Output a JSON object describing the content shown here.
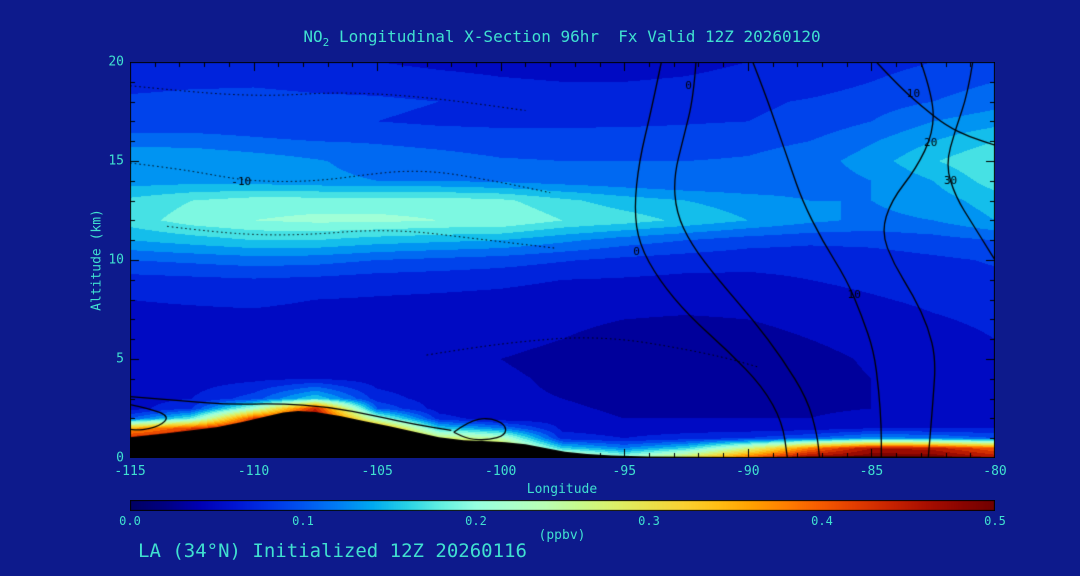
{
  "page": {
    "background": "#0d1a8c",
    "text_color": "#40e0d0"
  },
  "chart_data": {
    "type": "heatmap",
    "title_prefix": "NO",
    "title_sub": "2",
    "title_rest": " Longitudinal X-Section 96hr  Fx Valid 12Z 20260120",
    "footer": "LA (34°N) Initialized 12Z 20260116",
    "xlabel": "Longitude",
    "ylabel": "Altitude (km)",
    "xlim": [
      -115,
      -80
    ],
    "ylim": [
      0,
      20
    ],
    "x_ticks": [
      -115,
      -110,
      -105,
      -100,
      -95,
      -90,
      -85,
      -80
    ],
    "y_ticks": [
      0,
      5,
      10,
      15,
      20
    ],
    "grid_on": false,
    "colorbar": {
      "label": "(ppbv)",
      "tick_labels": [
        "0.0",
        "0.1",
        "0.2",
        "0.3",
        "0.4",
        "0.5"
      ],
      "min": 0.0,
      "max": 0.5
    },
    "colormap": [
      [
        0.0,
        "#000064"
      ],
      [
        0.02,
        "#000082"
      ],
      [
        0.04,
        "#0000b4"
      ],
      [
        0.06,
        "#0014d2"
      ],
      [
        0.08,
        "#0032e6"
      ],
      [
        0.1,
        "#0055f0"
      ],
      [
        0.12,
        "#007df5"
      ],
      [
        0.14,
        "#00aaf0"
      ],
      [
        0.16,
        "#28d2e6"
      ],
      [
        0.18,
        "#64f0e1"
      ],
      [
        0.2,
        "#96ffe1"
      ],
      [
        0.22,
        "#aaffcd"
      ],
      [
        0.24,
        "#b9ffb4"
      ],
      [
        0.26,
        "#c8fa8c"
      ],
      [
        0.28,
        "#dcf169"
      ],
      [
        0.3,
        "#ebe14b"
      ],
      [
        0.32,
        "#fad232"
      ],
      [
        0.34,
        "#ffbe14"
      ],
      [
        0.36,
        "#ffa000"
      ],
      [
        0.38,
        "#ff7d00"
      ],
      [
        0.4,
        "#f55a00"
      ],
      [
        0.42,
        "#e13c00"
      ],
      [
        0.44,
        "#c82300"
      ],
      [
        0.46,
        "#aa0f00"
      ],
      [
        0.48,
        "#8c0500"
      ],
      [
        0.5,
        "#700000"
      ]
    ],
    "band_step": 0.02,
    "grid": {
      "lons": [
        -115,
        -112.5,
        -110,
        -107.5,
        -105,
        -102.5,
        -100,
        -97.5,
        -95,
        -92.5,
        -90,
        -87.5,
        -85,
        -82.5,
        -80
      ],
      "alts": [
        0,
        0.5,
        1,
        1.5,
        2,
        2.5,
        3,
        4,
        5,
        6,
        7,
        8,
        9,
        10,
        11,
        12,
        13,
        14,
        15,
        16,
        17,
        18,
        19,
        20
      ],
      "values": [
        [
          0.5,
          0.5,
          0.5,
          0.5,
          0.5,
          0.46,
          0.4,
          0.3,
          0.22,
          0.3,
          0.4,
          0.48,
          0.5,
          0.5,
          0.46
        ],
        [
          0.5,
          0.5,
          0.5,
          0.5,
          0.47,
          0.38,
          0.32,
          0.16,
          0.12,
          0.16,
          0.26,
          0.38,
          0.46,
          0.45,
          0.4
        ],
        [
          0.44,
          0.47,
          0.5,
          0.5,
          0.44,
          0.28,
          0.24,
          0.07,
          0.06,
          0.07,
          0.08,
          0.1,
          0.13,
          0.12,
          0.1
        ],
        [
          0.35,
          0.42,
          0.48,
          0.5,
          0.38,
          0.16,
          0.12,
          0.055,
          0.05,
          0.05,
          0.05,
          0.05,
          0.06,
          0.06,
          0.06
        ],
        [
          0.1,
          0.18,
          0.42,
          0.48,
          0.22,
          0.07,
          0.045,
          0.05,
          0.04,
          0.04,
          0.04,
          0.04,
          0.05,
          0.05,
          0.05
        ],
        [
          0.05,
          0.08,
          0.22,
          0.44,
          0.1,
          0.05,
          0.04,
          0.045,
          0.035,
          0.03,
          0.03,
          0.035,
          0.04,
          0.045,
          0.05
        ],
        [
          0.05,
          0.06,
          0.09,
          0.16,
          0.07,
          0.05,
          0.042,
          0.04,
          0.03,
          0.022,
          0.028,
          0.033,
          0.04,
          0.045,
          0.05
        ],
        [
          0.045,
          0.05,
          0.055,
          0.06,
          0.05,
          0.045,
          0.042,
          0.038,
          0.028,
          0.02,
          0.028,
          0.034,
          0.04,
          0.046,
          0.05
        ],
        [
          0.045,
          0.048,
          0.05,
          0.05,
          0.046,
          0.044,
          0.04,
          0.036,
          0.028,
          0.024,
          0.03,
          0.035,
          0.042,
          0.05,
          0.055
        ],
        [
          0.05,
          0.05,
          0.05,
          0.05,
          0.048,
          0.046,
          0.044,
          0.04,
          0.034,
          0.03,
          0.034,
          0.04,
          0.046,
          0.052,
          0.06
        ],
        [
          0.055,
          0.055,
          0.055,
          0.053,
          0.05,
          0.05,
          0.048,
          0.044,
          0.04,
          0.038,
          0.04,
          0.045,
          0.05,
          0.058,
          0.064
        ],
        [
          0.06,
          0.062,
          0.064,
          0.06,
          0.058,
          0.056,
          0.054,
          0.05,
          0.048,
          0.047,
          0.048,
          0.052,
          0.058,
          0.064,
          0.07
        ],
        [
          0.072,
          0.075,
          0.078,
          0.075,
          0.07,
          0.068,
          0.065,
          0.06,
          0.058,
          0.055,
          0.056,
          0.06,
          0.065,
          0.07,
          0.076
        ],
        [
          0.1,
          0.105,
          0.11,
          0.108,
          0.1,
          0.095,
          0.09,
          0.082,
          0.075,
          0.07,
          0.066,
          0.066,
          0.07,
          0.076,
          0.082
        ],
        [
          0.14,
          0.15,
          0.16,
          0.16,
          0.15,
          0.145,
          0.14,
          0.125,
          0.11,
          0.1,
          0.09,
          0.085,
          0.086,
          0.092,
          0.1
        ],
        [
          0.17,
          0.19,
          0.2,
          0.205,
          0.205,
          0.2,
          0.2,
          0.18,
          0.17,
          0.155,
          0.14,
          0.125,
          0.115,
          0.12,
          0.14
        ],
        [
          0.165,
          0.18,
          0.19,
          0.19,
          0.19,
          0.19,
          0.185,
          0.165,
          0.15,
          0.14,
          0.13,
          0.12,
          0.12,
          0.13,
          0.15
        ],
        [
          0.13,
          0.132,
          0.13,
          0.125,
          0.12,
          0.12,
          0.115,
          0.11,
          0.105,
          0.1,
          0.1,
          0.108,
          0.12,
          0.14,
          0.17
        ],
        [
          0.14,
          0.14,
          0.132,
          0.122,
          0.112,
          0.108,
          0.102,
          0.1,
          0.1,
          0.1,
          0.102,
          0.11,
          0.13,
          0.158,
          0.18
        ],
        [
          0.112,
          0.11,
          0.104,
          0.1,
          0.098,
          0.094,
          0.09,
          0.09,
          0.09,
          0.09,
          0.094,
          0.1,
          0.118,
          0.14,
          0.16
        ],
        [
          0.082,
          0.086,
          0.086,
          0.082,
          0.08,
          0.076,
          0.075,
          0.075,
          0.076,
          0.078,
          0.08,
          0.086,
          0.1,
          0.12,
          0.132
        ],
        [
          0.086,
          0.09,
          0.09,
          0.086,
          0.084,
          0.08,
          0.076,
          0.072,
          0.07,
          0.072,
          0.076,
          0.082,
          0.09,
          0.1,
          0.112
        ],
        [
          0.07,
          0.074,
          0.076,
          0.072,
          0.07,
          0.066,
          0.062,
          0.06,
          0.06,
          0.062,
          0.066,
          0.07,
          0.08,
          0.09,
          0.1
        ],
        [
          0.06,
          0.062,
          0.062,
          0.06,
          0.06,
          0.056,
          0.054,
          0.052,
          0.052,
          0.055,
          0.06,
          0.064,
          0.072,
          0.08,
          0.09
        ]
      ]
    },
    "terrain": [
      [
        -115,
        1.05
      ],
      [
        -113.5,
        1.25
      ],
      [
        -112.5,
        1.4
      ],
      [
        -111.5,
        1.55
      ],
      [
        -110.5,
        1.8
      ],
      [
        -109.5,
        2.1
      ],
      [
        -108.8,
        2.3
      ],
      [
        -108.2,
        2.38
      ],
      [
        -107.5,
        2.32
      ],
      [
        -106.5,
        2.12
      ],
      [
        -105.5,
        1.86
      ],
      [
        -104.5,
        1.6
      ],
      [
        -103.5,
        1.32
      ],
      [
        -102.5,
        1.05
      ],
      [
        -101.5,
        0.9
      ],
      [
        -100.5,
        0.85
      ],
      [
        -99.8,
        0.8
      ],
      [
        -99,
        0.7
      ],
      [
        -98.2,
        0.5
      ],
      [
        -97.4,
        0.32
      ],
      [
        -96.5,
        0.2
      ],
      [
        -95.5,
        0.12
      ],
      [
        -94,
        0.08
      ],
      [
        -92,
        0.06
      ],
      [
        -90,
        0.05
      ],
      [
        -88,
        0.06
      ],
      [
        -86,
        0.07
      ],
      [
        -84,
        0.07
      ],
      [
        -82,
        0.06
      ],
      [
        -80,
        0.05
      ]
    ],
    "contour_labels": [
      -10,
      0,
      10,
      20,
      30
    ],
    "contours": [
      {
        "label": "0",
        "style": "solid",
        "points": [
          [
            -93.5,
            20
          ],
          [
            -93.9,
            17.6
          ],
          [
            -94.4,
            15.0
          ],
          [
            -94.6,
            12.6
          ],
          [
            -94.4,
            10.8
          ],
          [
            -93.6,
            9.0
          ],
          [
            -92.4,
            7.2
          ],
          [
            -90.8,
            5.4
          ],
          [
            -89.4,
            3.6
          ],
          [
            -88.6,
            1.8
          ],
          [
            -88.4,
            0
          ]
        ],
        "labels": [
          [
            -94.5,
            10.4
          ]
        ]
      },
      {
        "label": "0",
        "style": "solid",
        "points": [
          [
            -92.1,
            20
          ],
          [
            -92.2,
            18.2
          ],
          [
            -92.6,
            16.2
          ],
          [
            -93.0,
            14.2
          ],
          [
            -92.9,
            12.4
          ],
          [
            -92.3,
            10.8
          ],
          [
            -91.2,
            9.0
          ],
          [
            -89.8,
            7.0
          ],
          [
            -88.6,
            5.0
          ],
          [
            -87.6,
            3.0
          ],
          [
            -87.2,
            1.2
          ],
          [
            -87.1,
            0
          ]
        ],
        "labels": [
          [
            -92.4,
            18.8
          ]
        ]
      },
      {
        "label": "10",
        "style": "solid",
        "points": [
          [
            -89.8,
            20
          ],
          [
            -89.3,
            18.4
          ],
          [
            -88.8,
            16.6
          ],
          [
            -88.3,
            14.8
          ],
          [
            -87.8,
            13.0
          ],
          [
            -87.0,
            11.0
          ],
          [
            -86.0,
            9.0
          ],
          [
            -85.4,
            7.2
          ],
          [
            -84.9,
            5.4
          ],
          [
            -84.7,
            3.4
          ],
          [
            -84.6,
            1.6
          ],
          [
            -84.6,
            0
          ]
        ],
        "labels": [
          [
            -85.7,
            8.2
          ]
        ]
      },
      {
        "label": "10",
        "style": "solid",
        "points": [
          [
            -84.8,
            20
          ],
          [
            -83.9,
            18.8
          ],
          [
            -83.0,
            17.8
          ],
          [
            -82.0,
            16.8
          ],
          [
            -81.0,
            16.2
          ],
          [
            -80.0,
            15.8
          ]
        ],
        "labels": [
          [
            -83.3,
            18.4
          ]
        ]
      },
      {
        "label": "20",
        "style": "solid",
        "points": [
          [
            -83.0,
            20
          ],
          [
            -82.5,
            18.2
          ],
          [
            -82.5,
            16.4
          ],
          [
            -83.2,
            14.6
          ],
          [
            -84.2,
            13.0
          ],
          [
            -84.6,
            11.4
          ],
          [
            -84.1,
            9.8
          ],
          [
            -83.3,
            8.2
          ],
          [
            -82.7,
            6.6
          ],
          [
            -82.4,
            5.0
          ],
          [
            -82.5,
            3.0
          ],
          [
            -82.7,
            0
          ]
        ],
        "labels": [
          [
            -82.6,
            15.9
          ]
        ]
      },
      {
        "label": "30",
        "style": "solid",
        "points": [
          [
            -80.9,
            20
          ],
          [
            -81.1,
            18.4
          ],
          [
            -81.6,
            16.6
          ],
          [
            -82.0,
            14.8
          ],
          [
            -81.6,
            13.2
          ],
          [
            -80.9,
            11.8
          ],
          [
            -80.3,
            10.6
          ],
          [
            -80,
            10.0
          ]
        ],
        "labels": [
          [
            -81.8,
            14.0
          ]
        ]
      },
      {
        "label": "",
        "style": "solid",
        "points": [
          [
            -101.9,
            1.3
          ],
          [
            -101.3,
            1.85
          ],
          [
            -100.5,
            2.05
          ],
          [
            -99.8,
            1.7
          ],
          [
            -99.8,
            1.15
          ],
          [
            -100.5,
            0.9
          ],
          [
            -101.3,
            0.95
          ],
          [
            -101.9,
            1.3
          ]
        ],
        "labels": []
      },
      {
        "label": "",
        "style": "solid",
        "points": [
          [
            -115,
            2.7
          ],
          [
            -114.2,
            2.5
          ],
          [
            -113.4,
            2.1
          ],
          [
            -113.8,
            1.6
          ],
          [
            -114.6,
            1.4
          ],
          [
            -115,
            1.45
          ]
        ],
        "labels": []
      },
      {
        "label": "",
        "style": "solid",
        "points": [
          [
            -115,
            3.1
          ],
          [
            -113,
            2.9
          ],
          [
            -111,
            2.7
          ],
          [
            -109,
            2.75
          ],
          [
            -107,
            2.6
          ],
          [
            -105,
            2.1
          ],
          [
            -103.5,
            1.7
          ],
          [
            -102,
            1.4
          ]
        ],
        "labels": []
      },
      {
        "label": "-10",
        "style": "dotted",
        "points": [
          [
            -115,
            14.9
          ],
          [
            -113,
            14.6
          ],
          [
            -111,
            14.15
          ],
          [
            -110,
            14.0
          ],
          [
            -108.5,
            13.95
          ],
          [
            -107,
            14.05
          ],
          [
            -105.5,
            14.3
          ],
          [
            -104,
            14.5
          ],
          [
            -102.5,
            14.45
          ],
          [
            -101,
            14.15
          ],
          [
            -99.5,
            13.8
          ],
          [
            -98,
            13.4
          ]
        ],
        "labels": [
          [
            -110.5,
            13.95
          ]
        ]
      },
      {
        "label": "",
        "style": "dotted",
        "points": [
          [
            -115,
            18.8
          ],
          [
            -113,
            18.55
          ],
          [
            -111,
            18.35
          ],
          [
            -109,
            18.3
          ],
          [
            -107,
            18.45
          ],
          [
            -105,
            18.4
          ],
          [
            -103,
            18.2
          ],
          [
            -101,
            17.9
          ],
          [
            -99,
            17.55
          ]
        ],
        "labels": []
      },
      {
        "label": "",
        "style": "dotted",
        "points": [
          [
            -113.5,
            11.7
          ],
          [
            -111.5,
            11.4
          ],
          [
            -109.5,
            11.25
          ],
          [
            -107.5,
            11.3
          ],
          [
            -105.5,
            11.5
          ],
          [
            -103.5,
            11.45
          ],
          [
            -101.5,
            11.15
          ],
          [
            -99.5,
            10.85
          ],
          [
            -97.8,
            10.6
          ]
        ],
        "labels": []
      },
      {
        "label": "",
        "style": "dotted",
        "points": [
          [
            -103,
            5.2
          ],
          [
            -101,
            5.6
          ],
          [
            -99,
            5.9
          ],
          [
            -97,
            6.1
          ],
          [
            -95,
            6.0
          ],
          [
            -93,
            5.6
          ],
          [
            -91,
            5.1
          ],
          [
            -89.6,
            4.6
          ]
        ],
        "labels": []
      }
    ]
  }
}
